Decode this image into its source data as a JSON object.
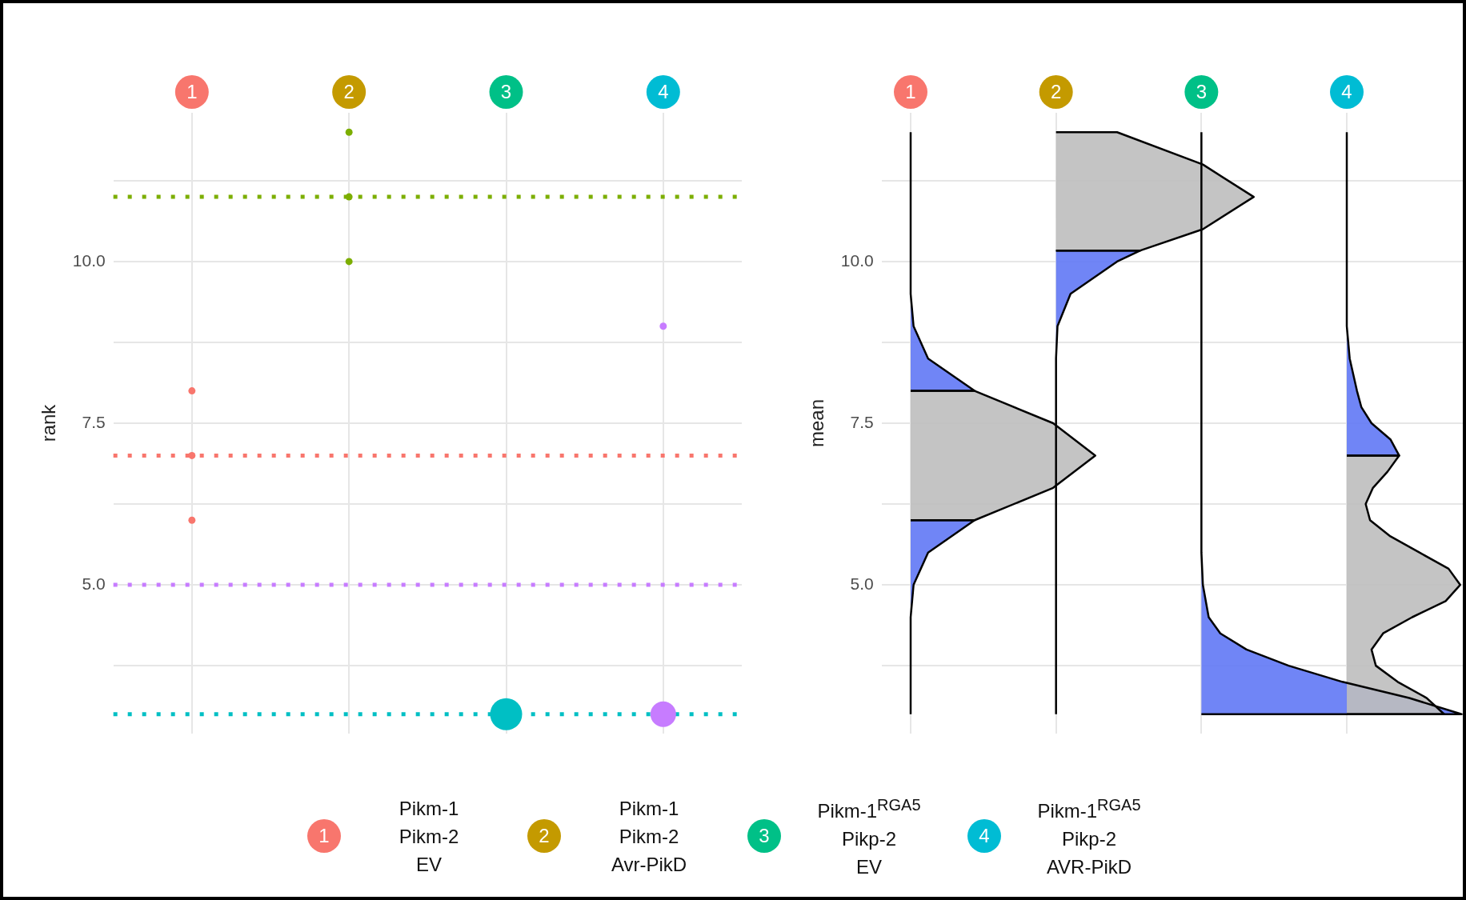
{
  "chart_data": [
    {
      "type": "bubble",
      "ylabel": "rank",
      "categories": [
        "1",
        "2",
        "3",
        "4"
      ],
      "ylim": [
        2.7,
        12.3
      ],
      "yticks": [
        {
          "value": 3.75,
          "label": null
        },
        {
          "value": 5,
          "label": "5.0"
        },
        {
          "value": 6.25,
          "label": null
        },
        {
          "value": 7.5,
          "label": "7.5"
        },
        {
          "value": 8.75,
          "label": null
        },
        {
          "value": 10,
          "label": "10.0"
        },
        {
          "value": 11.25,
          "label": null
        }
      ],
      "grid": true,
      "series": [
        {
          "color": "#f8766d",
          "x": [
            "1",
            "1",
            "1"
          ],
          "values": [
            8,
            7,
            6
          ],
          "sizes": [
            0.05,
            0.05,
            0.05
          ]
        },
        {
          "color": "#7cae00",
          "x": [
            "2",
            "2",
            "2"
          ],
          "values": [
            12,
            11,
            10
          ],
          "sizes": [
            0.05,
            0.05,
            0.05
          ]
        },
        {
          "color": "#00bfc4",
          "x": [
            "3"
          ],
          "values": [
            3
          ],
          "sizes": [
            1
          ]
        },
        {
          "color": "#c77cff",
          "x": [
            "4",
            "4"
          ],
          "values": [
            9,
            3
          ],
          "sizes": [
            0.05,
            0.64
          ]
        }
      ],
      "ref_lines": [
        {
          "axis": "y",
          "value": 11,
          "color": "#7cae00",
          "line_style": "dotted"
        },
        {
          "axis": "y",
          "value": 7,
          "color": "#f8766d",
          "line_style": "dotted"
        },
        {
          "axis": "y",
          "value": 5,
          "color": "#c77cff",
          "line_style": "dotted"
        },
        {
          "axis": "y",
          "value": 3,
          "color": "#00bfc4",
          "line_style": "dotted"
        }
      ],
      "annotations": [
        "Pikm-1\nPikm-2\nEV",
        "Pikm-1\nPikm-2\nAvr-PikD",
        "Pikm-1$^{RGA5}$\nPikp-2\nEV",
        "Pikm-1$^{RGA5}$\nPikp-2\nAVR-PikD"
      ]
    },
    {
      "type": "area",
      "ylabel": "mean",
      "xlim": [
        0.8,
        4.82
      ],
      "xticks": [
        {
          "value": 1,
          "label": "1"
        },
        {
          "value": 2,
          "label": "2"
        },
        {
          "value": 3,
          "label": "3"
        },
        {
          "value": 4,
          "label": "4"
        }
      ],
      "ylim": [
        2.7,
        12.3
      ],
      "yticks": [
        {
          "value": 3.75,
          "label": null
        },
        {
          "value": 5,
          "label": "5.0"
        },
        {
          "value": 6.25,
          "label": null
        },
        {
          "value": 7.5,
          "label": "7.5"
        },
        {
          "value": 8.75,
          "label": null
        },
        {
          "value": 10,
          "label": "10.0"
        },
        {
          "value": 11.25,
          "label": null
        }
      ],
      "grid": true,
      "series": [
        {
          "color": "#6078f5",
          "x": [
            1,
            1,
            1,
            1.02,
            1.12,
            1.44,
            1
          ],
          "values": [
            3,
            4,
            4.5,
            5,
            5.5,
            6,
            6
          ]
        },
        {
          "color": "#bebebe",
          "x": [
            1,
            1.44,
            1.98,
            2.27,
            1.98,
            1.44,
            1
          ],
          "values": [
            6,
            6,
            6.5,
            7,
            7.5,
            8,
            8
          ]
        },
        {
          "color": "#6078f5",
          "x": [
            1,
            1.44,
            1.12,
            1.02,
            1,
            1
          ],
          "values": [
            8,
            8,
            8.5,
            9,
            9.5,
            12
          ]
        },
        {
          "color": "#6078f5",
          "x": [
            2,
            2,
            2.01,
            2.1,
            2.42,
            2.58,
            2
          ],
          "values": [
            3,
            8.5,
            9,
            9.5,
            10,
            10.17,
            10.17
          ]
        },
        {
          "color": "#bebebe",
          "x": [
            2,
            2.58,
            3.01,
            3.36,
            3.01,
            2.42,
            2
          ],
          "values": [
            10.17,
            10.17,
            10.5,
            11,
            11.5,
            12,
            12
          ]
        },
        {
          "color": "#6078f5",
          "x": [
            3,
            4.79,
            4.43,
            3.97,
            3.6,
            3.31,
            3.13,
            3.05,
            3.01,
            3,
            3
          ],
          "values": [
            3,
            3,
            3.25,
            3.5,
            3.75,
            4,
            4.25,
            4.5,
            5,
            5.5,
            12
          ]
        },
        {
          "color": "#bebebe",
          "x": [
            4,
            4.67,
            4.55,
            4.35,
            4.2,
            4.17,
            4.25,
            4.45,
            4.68,
            4.78,
            4.7,
            4.5,
            4.3,
            4.16,
            4.13,
            4.18,
            4.28,
            4.36,
            4
          ],
          "values": [
            3,
            3,
            3.25,
            3.5,
            3.75,
            4,
            4.25,
            4.5,
            4.75,
            5,
            5.25,
            5.5,
            5.75,
            6,
            6.25,
            6.5,
            6.75,
            7,
            7
          ]
        },
        {
          "color": "#6078f5",
          "x": [
            4,
            4.36,
            4.3,
            4.17,
            4.1,
            4.07,
            4.02,
            4,
            4
          ],
          "values": [
            7,
            7,
            7.25,
            7.5,
            7.75,
            8,
            8.5,
            9,
            12
          ]
        }
      ]
    }
  ]
}
